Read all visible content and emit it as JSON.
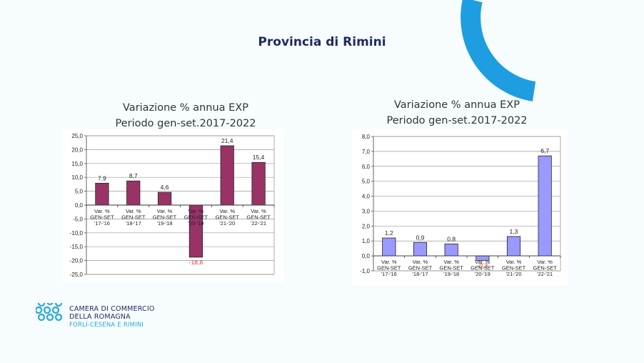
{
  "slide": {
    "title": "Provincia di  Rimini",
    "accent_color": "#1e9ee0"
  },
  "logo": {
    "line1": "CAMERA DI COMMERCIO",
    "line2": "DELLA ROMAGNA",
    "line3": "FORLÌ-CESENA E RIMINI",
    "color": "#2aa8d8"
  },
  "chart_data": [
    {
      "type": "bar",
      "title_line1": "Variazione % annua EXP",
      "title_line2": "Periodo gen-set.2017-2022",
      "categories": [
        [
          "Var. %",
          "GEN-SET",
          "'17-'16"
        ],
        [
          "Var. %",
          "GEN-SET",
          "'18-'17"
        ],
        [
          "Var. %",
          "GEN-SET",
          "'19-'18"
        ],
        [
          "Var. %",
          "GEN-SET",
          "'20-'19"
        ],
        [
          "Var. %",
          "GEN-SET",
          "'21-'20"
        ],
        [
          "Var. %",
          "GEN-SET",
          "'22-'21"
        ]
      ],
      "values": [
        7.9,
        8.7,
        4.6,
        -18.8,
        21.4,
        15.4
      ],
      "value_labels": [
        "7,9",
        "8,7",
        "4,6",
        "-18,8",
        "21,4",
        "15,4"
      ],
      "ylim": [
        -25,
        25
      ],
      "y_ticks": [
        25,
        20,
        15,
        10,
        5,
        0,
        -5,
        -10,
        -15,
        -20,
        -25
      ],
      "y_tick_labels": [
        "25,0",
        "20,0",
        "15,0",
        "10,0",
        "5,0",
        "0,0",
        "-5,0",
        "-10,0",
        "-15,0",
        "-20,0",
        "-25,0"
      ],
      "bar_color": "#993366",
      "negative_label_color": "#e03030",
      "grid": true
    },
    {
      "type": "bar",
      "title_line1": "Variazione % annua EXP",
      "title_line2": "Periodo gen-set.2017-2022",
      "categories": [
        [
          "Var. %",
          "GEN-SET",
          "'17-'16"
        ],
        [
          "Var. %",
          "GEN-SET",
          "'18-'17"
        ],
        [
          "Var. %",
          "GEN-SET",
          "'19-'18"
        ],
        [
          "Var. %",
          "GEN-SET",
          "'20-'19"
        ],
        [
          "Var. %",
          "GEN-SET",
          "'21-'20"
        ],
        [
          "Var. %",
          "GEN-SET",
          "'22-'21"
        ]
      ],
      "values": [
        1.2,
        0.9,
        0.8,
        -0.3,
        1.3,
        6.7
      ],
      "value_labels": [
        "1,2",
        "0,9",
        "0,8",
        "-0,3",
        "1,3",
        "6,7"
      ],
      "ylim": [
        -1,
        8
      ],
      "y_ticks": [
        8,
        7,
        6,
        5,
        4,
        3,
        2,
        1,
        0,
        -1
      ],
      "y_tick_labels": [
        "8,0",
        "7,0",
        "6,0",
        "5,0",
        "4,0",
        "3,0",
        "2,0",
        "1,0",
        "0,0",
        "-1,0"
      ],
      "bar_color": "#9999ff",
      "negative_label_color": "#e03030",
      "grid": true
    }
  ]
}
